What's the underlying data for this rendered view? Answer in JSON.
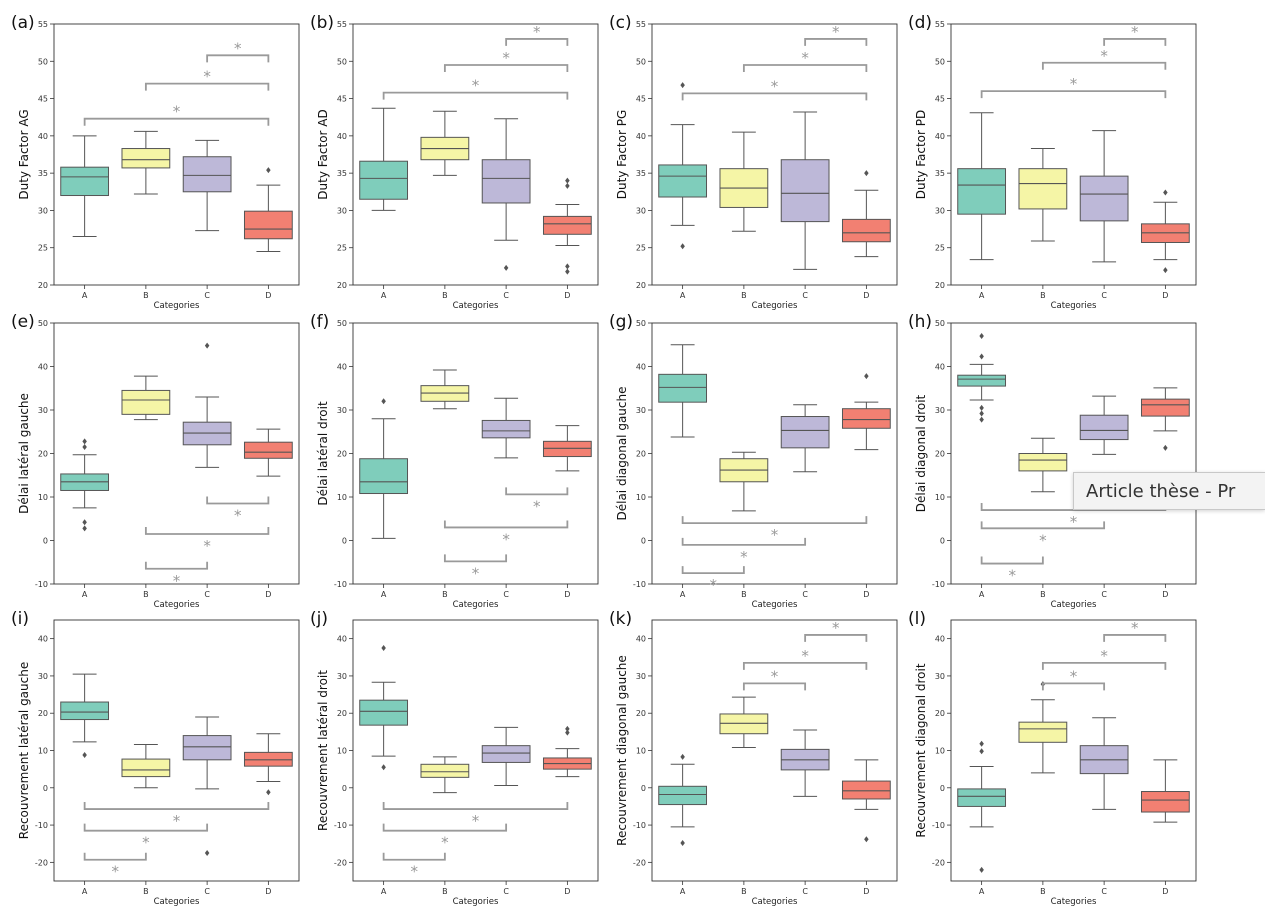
{
  "tooltip": {
    "text": "Article thèse - Pr"
  },
  "colors": {
    "A": "#7fcdbb",
    "B": "#f5f5a6",
    "C": "#bdb8d8",
    "D": "#f28072",
    "bracket": "#9a9a9a"
  },
  "chart_data": [
    {
      "label": "(a)",
      "type": "box",
      "ylabel": "Duty Factor AG",
      "xlabel": "Categories",
      "categories": [
        "A",
        "B",
        "C",
        "D"
      ],
      "ylim": [
        20,
        55
      ],
      "yticks": [
        20,
        25,
        30,
        35,
        40,
        45,
        50,
        55
      ],
      "boxes": [
        {
          "q1": 32.0,
          "median": 34.5,
          "q3": 35.8,
          "whislo": 26.5,
          "whishi": 40.0,
          "fliers": []
        },
        {
          "q1": 35.7,
          "median": 36.8,
          "q3": 38.3,
          "whislo": 32.2,
          "whishi": 40.6,
          "fliers": []
        },
        {
          "q1": 32.5,
          "median": 34.7,
          "q3": 37.2,
          "whislo": 27.3,
          "whishi": 39.4,
          "fliers": []
        },
        {
          "q1": 26.2,
          "median": 27.5,
          "q3": 29.9,
          "whislo": 24.5,
          "whishi": 33.4,
          "fliers": [
            35.4
          ]
        }
      ],
      "brackets": [
        {
          "from": 0,
          "to": 3,
          "y": 42.3
        },
        {
          "from": 1,
          "to": 3,
          "y": 47.0
        },
        {
          "from": 2,
          "to": 3,
          "y": 50.8
        }
      ]
    },
    {
      "label": "(b)",
      "type": "box",
      "ylabel": "Duty Factor AD",
      "xlabel": "Categories",
      "categories": [
        "A",
        "B",
        "C",
        "D"
      ],
      "ylim": [
        20,
        55
      ],
      "yticks": [
        20,
        25,
        30,
        35,
        40,
        45,
        50,
        55
      ],
      "boxes": [
        {
          "q1": 31.5,
          "median": 34.3,
          "q3": 36.6,
          "whislo": 30.0,
          "whishi": 43.7,
          "fliers": []
        },
        {
          "q1": 36.8,
          "median": 38.3,
          "q3": 39.8,
          "whislo": 34.7,
          "whishi": 43.3,
          "fliers": []
        },
        {
          "q1": 31.0,
          "median": 34.3,
          "q3": 36.8,
          "whislo": 26.0,
          "whishi": 42.3,
          "fliers": [
            22.3
          ]
        },
        {
          "q1": 26.8,
          "median": 28.2,
          "q3": 29.2,
          "whislo": 25.3,
          "whishi": 30.8,
          "fliers": [
            33.3,
            34.0,
            21.8,
            22.5
          ]
        }
      ],
      "brackets": [
        {
          "from": 0,
          "to": 3,
          "y": 45.8
        },
        {
          "from": 1,
          "to": 3,
          "y": 49.5
        },
        {
          "from": 2,
          "to": 3,
          "y": 53.0
        }
      ]
    },
    {
      "label": "(c)",
      "type": "box",
      "ylabel": "Duty Factor PG",
      "xlabel": "Categories",
      "categories": [
        "A",
        "B",
        "C",
        "D"
      ],
      "ylim": [
        20,
        55
      ],
      "yticks": [
        20,
        25,
        30,
        35,
        40,
        45,
        50,
        55
      ],
      "boxes": [
        {
          "q1": 31.8,
          "median": 34.6,
          "q3": 36.1,
          "whislo": 28.0,
          "whishi": 41.5,
          "fliers": [
            46.8,
            25.2
          ]
        },
        {
          "q1": 30.4,
          "median": 33.0,
          "q3": 35.6,
          "whislo": 27.2,
          "whishi": 40.5,
          "fliers": []
        },
        {
          "q1": 28.5,
          "median": 32.3,
          "q3": 36.8,
          "whislo": 22.1,
          "whishi": 43.2,
          "fliers": []
        },
        {
          "q1": 25.8,
          "median": 27.0,
          "q3": 28.8,
          "whislo": 23.8,
          "whishi": 32.7,
          "fliers": [
            35.0
          ]
        }
      ],
      "brackets": [
        {
          "from": 0,
          "to": 3,
          "y": 45.7
        },
        {
          "from": 1,
          "to": 3,
          "y": 49.5
        },
        {
          "from": 2,
          "to": 3,
          "y": 53.0
        }
      ]
    },
    {
      "label": "(d)",
      "type": "box",
      "ylabel": "Duty Factor PD",
      "xlabel": "Categories",
      "categories": [
        "A",
        "B",
        "C",
        "D"
      ],
      "ylim": [
        20,
        55
      ],
      "yticks": [
        20,
        25,
        30,
        35,
        40,
        45,
        50,
        55
      ],
      "boxes": [
        {
          "q1": 29.5,
          "median": 33.4,
          "q3": 35.6,
          "whislo": 23.4,
          "whishi": 43.1,
          "fliers": []
        },
        {
          "q1": 30.2,
          "median": 33.6,
          "q3": 35.6,
          "whislo": 25.9,
          "whishi": 38.3,
          "fliers": []
        },
        {
          "q1": 28.6,
          "median": 32.2,
          "q3": 34.6,
          "whislo": 23.1,
          "whishi": 40.7,
          "fliers": []
        },
        {
          "q1": 25.7,
          "median": 27.0,
          "q3": 28.2,
          "whislo": 23.4,
          "whishi": 31.1,
          "fliers": [
            32.4,
            22.0
          ]
        }
      ],
      "brackets": [
        {
          "from": 0,
          "to": 3,
          "y": 46.0
        },
        {
          "from": 1,
          "to": 3,
          "y": 49.8
        },
        {
          "from": 2,
          "to": 3,
          "y": 53.0
        }
      ]
    },
    {
      "label": "(e)",
      "type": "box",
      "ylabel": "Délai latéral gauche",
      "xlabel": "Categories",
      "categories": [
        "A",
        "B",
        "C",
        "D"
      ],
      "ylim": [
        -10,
        50
      ],
      "yticks": [
        -10,
        0,
        10,
        20,
        30,
        40,
        50
      ],
      "boxes": [
        {
          "q1": 11.5,
          "median": 13.5,
          "q3": 15.3,
          "whislo": 7.5,
          "whishi": 19.7,
          "fliers": [
            22.8,
            21.5,
            4.2,
            2.8
          ]
        },
        {
          "q1": 29.0,
          "median": 32.3,
          "q3": 34.5,
          "whislo": 27.8,
          "whishi": 37.8,
          "fliers": []
        },
        {
          "q1": 22.0,
          "median": 24.7,
          "q3": 27.2,
          "whislo": 16.8,
          "whishi": 33.0,
          "fliers": [
            44.8
          ]
        },
        {
          "q1": 18.9,
          "median": 20.3,
          "q3": 22.6,
          "whislo": 14.8,
          "whishi": 25.6,
          "fliers": []
        }
      ],
      "brackets": [
        {
          "from": 2,
          "to": 3,
          "y": 8.5,
          "down": true
        },
        {
          "from": 1,
          "to": 3,
          "y": 1.5,
          "down": true
        },
        {
          "from": 1,
          "to": 2,
          "y": -6.5,
          "down": true
        }
      ]
    },
    {
      "label": "(f)",
      "type": "box",
      "ylabel": "Délai latéral droit",
      "xlabel": "Categories",
      "categories": [
        "A",
        "B",
        "C",
        "D"
      ],
      "ylim": [
        -10,
        50
      ],
      "yticks": [
        -10,
        0,
        10,
        20,
        30,
        40,
        50
      ],
      "boxes": [
        {
          "q1": 10.8,
          "median": 13.5,
          "q3": 18.8,
          "whislo": 0.5,
          "whishi": 28.0,
          "fliers": [
            32.0
          ]
        },
        {
          "q1": 32.0,
          "median": 33.9,
          "q3": 35.6,
          "whislo": 30.3,
          "whishi": 39.2,
          "fliers": []
        },
        {
          "q1": 23.6,
          "median": 25.2,
          "q3": 27.6,
          "whislo": 19.0,
          "whishi": 32.7,
          "fliers": []
        },
        {
          "q1": 19.3,
          "median": 21.2,
          "q3": 22.8,
          "whislo": 16.0,
          "whishi": 26.4,
          "fliers": []
        }
      ],
      "brackets": [
        {
          "from": 2,
          "to": 3,
          "y": 10.6,
          "down": true
        },
        {
          "from": 1,
          "to": 3,
          "y": 3.0,
          "down": true
        },
        {
          "from": 1,
          "to": 2,
          "y": -4.8,
          "down": true
        }
      ]
    },
    {
      "label": "(g)",
      "type": "box",
      "ylabel": "Délai diagonal gauche",
      "xlabel": "Categories",
      "categories": [
        "A",
        "B",
        "C",
        "D"
      ],
      "ylim": [
        -10,
        50
      ],
      "yticks": [
        -10,
        0,
        10,
        20,
        30,
        40,
        50
      ],
      "boxes": [
        {
          "q1": 31.8,
          "median": 35.2,
          "q3": 38.2,
          "whislo": 23.8,
          "whishi": 45.0,
          "fliers": []
        },
        {
          "q1": 13.5,
          "median": 16.2,
          "q3": 18.8,
          "whislo": 6.8,
          "whishi": 20.3,
          "fliers": []
        },
        {
          "q1": 21.3,
          "median": 25.3,
          "q3": 28.5,
          "whislo": 15.8,
          "whishi": 31.2,
          "fliers": []
        },
        {
          "q1": 25.8,
          "median": 27.8,
          "q3": 30.3,
          "whislo": 20.9,
          "whishi": 31.8,
          "fliers": [
            37.8
          ]
        }
      ],
      "brackets": [
        {
          "from": 0,
          "to": 3,
          "y": 4.0,
          "down": true
        },
        {
          "from": 0,
          "to": 2,
          "y": -1.0,
          "down": true
        },
        {
          "from": 0,
          "to": 1,
          "y": -7.5,
          "down": true
        }
      ]
    },
    {
      "label": "(h)",
      "type": "box",
      "ylabel": "Délai diagonal droit",
      "xlabel": "Categories",
      "categories": [
        "A",
        "B",
        "C",
        "D"
      ],
      "ylim": [
        -10,
        50
      ],
      "yticks": [
        -10,
        0,
        10,
        20,
        30,
        40,
        50
      ],
      "boxes": [
        {
          "q1": 35.5,
          "median": 37.1,
          "q3": 38.0,
          "whislo": 32.3,
          "whishi": 40.5,
          "fliers": [
            47.0,
            42.3,
            30.5,
            29.2,
            27.8
          ]
        },
        {
          "q1": 16.0,
          "median": 18.5,
          "q3": 20.0,
          "whislo": 11.2,
          "whishi": 23.5,
          "fliers": []
        },
        {
          "q1": 23.2,
          "median": 25.3,
          "q3": 28.8,
          "whislo": 19.8,
          "whishi": 33.2,
          "fliers": []
        },
        {
          "q1": 28.6,
          "median": 31.2,
          "q3": 32.5,
          "whislo": 25.2,
          "whishi": 35.1,
          "fliers": [
            21.3
          ]
        }
      ],
      "brackets": [
        {
          "from": 0,
          "to": 3,
          "y": 7.0,
          "down": true
        },
        {
          "from": 0,
          "to": 2,
          "y": 2.8,
          "down": true
        },
        {
          "from": 0,
          "to": 1,
          "y": -5.3,
          "down": true
        }
      ]
    },
    {
      "label": "(i)",
      "type": "box",
      "ylabel": "Recouvrement latéral gauche",
      "xlabel": "Categories",
      "categories": [
        "A",
        "B",
        "C",
        "D"
      ],
      "ylim": [
        -25,
        45
      ],
      "yticks": [
        -20,
        -10,
        0,
        10,
        20,
        30,
        40
      ],
      "boxes": [
        {
          "q1": 18.3,
          "median": 20.3,
          "q3": 23.0,
          "whislo": 12.3,
          "whishi": 30.5,
          "fliers": [
            8.8
          ]
        },
        {
          "q1": 3.0,
          "median": 4.8,
          "q3": 7.7,
          "whislo": 0.0,
          "whishi": 11.6,
          "fliers": []
        },
        {
          "q1": 7.5,
          "median": 11.0,
          "q3": 14.0,
          "whislo": -0.3,
          "whishi": 19.0,
          "fliers": [
            -17.5
          ]
        },
        {
          "q1": 5.8,
          "median": 7.5,
          "q3": 9.5,
          "whislo": 1.7,
          "whishi": 14.5,
          "fliers": [
            -1.2
          ]
        }
      ],
      "brackets": [
        {
          "from": 0,
          "to": 3,
          "y": -5.7,
          "down": true
        },
        {
          "from": 0,
          "to": 2,
          "y": -11.5,
          "down": true
        },
        {
          "from": 0,
          "to": 1,
          "y": -19.3,
          "down": true
        }
      ]
    },
    {
      "label": "(j)",
      "type": "box",
      "ylabel": "Recouvrement latéral droit",
      "xlabel": "Categories",
      "categories": [
        "A",
        "B",
        "C",
        "D"
      ],
      "ylim": [
        -25,
        45
      ],
      "yticks": [
        -20,
        -10,
        0,
        10,
        20,
        30,
        40
      ],
      "boxes": [
        {
          "q1": 16.8,
          "median": 20.5,
          "q3": 23.5,
          "whislo": 8.5,
          "whishi": 28.3,
          "fliers": [
            37.5,
            5.5
          ]
        },
        {
          "q1": 2.8,
          "median": 4.3,
          "q3": 6.3,
          "whislo": -1.3,
          "whishi": 8.3,
          "fliers": []
        },
        {
          "q1": 6.8,
          "median": 9.3,
          "q3": 11.3,
          "whislo": 0.6,
          "whishi": 16.2,
          "fliers": []
        },
        {
          "q1": 5.0,
          "median": 6.5,
          "q3": 8.0,
          "whislo": 3.0,
          "whishi": 10.5,
          "fliers": [
            14.8,
            15.8
          ]
        }
      ],
      "brackets": [
        {
          "from": 0,
          "to": 3,
          "y": -5.7,
          "down": true
        },
        {
          "from": 0,
          "to": 2,
          "y": -11.5,
          "down": true
        },
        {
          "from": 0,
          "to": 1,
          "y": -19.3,
          "down": true
        }
      ]
    },
    {
      "label": "(k)",
      "type": "box",
      "ylabel": "Recouvrement diagonal gauche",
      "xlabel": "Categories",
      "categories": [
        "A",
        "B",
        "C",
        "D"
      ],
      "ylim": [
        -25,
        45
      ],
      "yticks": [
        -20,
        -10,
        0,
        10,
        20,
        30,
        40
      ],
      "boxes": [
        {
          "q1": -4.5,
          "median": -1.8,
          "q3": 0.4,
          "whislo": -10.5,
          "whishi": 6.3,
          "fliers": [
            8.3,
            -14.8
          ]
        },
        {
          "q1": 14.5,
          "median": 17.3,
          "q3": 19.8,
          "whislo": 10.8,
          "whishi": 24.3,
          "fliers": []
        },
        {
          "q1": 4.8,
          "median": 7.5,
          "q3": 10.3,
          "whislo": -2.3,
          "whishi": 15.5,
          "fliers": []
        },
        {
          "q1": -3.0,
          "median": -0.8,
          "q3": 1.8,
          "whislo": -5.8,
          "whishi": 7.5,
          "fliers": [
            -13.8
          ]
        }
      ],
      "brackets": [
        {
          "from": 1,
          "to": 2,
          "y": 28.0
        },
        {
          "from": 1,
          "to": 3,
          "y": 33.5
        },
        {
          "from": 2,
          "to": 3,
          "y": 41.0
        }
      ]
    },
    {
      "label": "(l)",
      "type": "box",
      "ylabel": "Recouvrement diagonal droit",
      "xlabel": "Categories",
      "categories": [
        "A",
        "B",
        "C",
        "D"
      ],
      "ylim": [
        -25,
        45
      ],
      "yticks": [
        -20,
        -10,
        0,
        10,
        20,
        30,
        40
      ],
      "boxes": [
        {
          "q1": -5.0,
          "median": -2.3,
          "q3": -0.3,
          "whislo": -10.5,
          "whishi": 5.7,
          "fliers": [
            11.8,
            9.8,
            -22.0
          ]
        },
        {
          "q1": 12.2,
          "median": 15.8,
          "q3": 17.6,
          "whislo": 4.0,
          "whishi": 23.6,
          "fliers": [
            27.8
          ]
        },
        {
          "q1": 3.8,
          "median": 7.5,
          "q3": 11.3,
          "whislo": -5.8,
          "whishi": 18.8,
          "fliers": []
        },
        {
          "q1": -6.5,
          "median": -3.3,
          "q3": -1.0,
          "whislo": -9.2,
          "whishi": 7.5,
          "fliers": []
        }
      ],
      "brackets": [
        {
          "from": 1,
          "to": 2,
          "y": 28.0
        },
        {
          "from": 1,
          "to": 3,
          "y": 33.5
        },
        {
          "from": 2,
          "to": 3,
          "y": 41.0
        }
      ]
    }
  ]
}
